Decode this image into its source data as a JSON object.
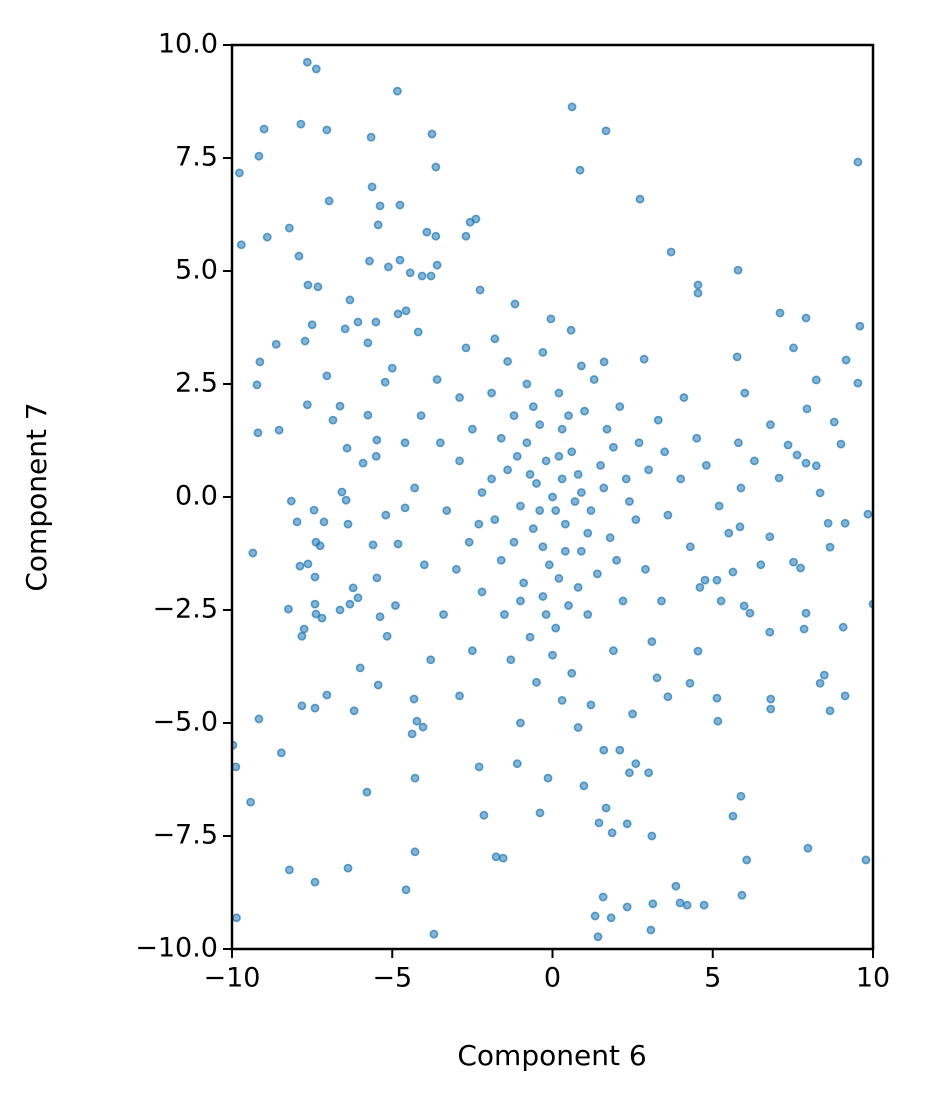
{
  "chart_data": {
    "type": "scatter",
    "xlabel": "Component 6",
    "ylabel": "Component 7",
    "color": "#1f77b4",
    "xlim": [
      -10,
      10
    ],
    "ylim": [
      -10,
      10
    ],
    "xticks": [
      {
        "value": -10,
        "label": "−10"
      },
      {
        "value": -5,
        "label": "−5"
      },
      0,
      5,
      10
    ],
    "yticks": [
      {
        "value": -10,
        "label": "−10.0"
      },
      {
        "value": -7.5,
        "label": "−7.5"
      },
      {
        "value": -5,
        "label": "−5.0"
      },
      {
        "value": -2.5,
        "label": "−2.5"
      },
      {
        "value": 0,
        "label": "0.0"
      },
      2.5,
      {
        "value": 5,
        "label": "5.0"
      },
      7.5,
      {
        "value": 10,
        "label": "10.0"
      }
    ],
    "x": [
      -7.65,
      -7.37,
      -4.84,
      0.61,
      -9.0,
      -7.85,
      -7.04,
      -3.76,
      -5.66,
      1.67,
      -9.77,
      -9.16,
      -3.64,
      0.86,
      9.53,
      2.73,
      -6.97,
      -5.63,
      -9.71,
      -8.9,
      -8.21,
      -5.38,
      -4.76,
      -2.57,
      -2.39,
      -5.44,
      -2.7,
      3.7,
      -7.91,
      -5.71,
      5.79,
      4.54,
      4.54,
      -7.63,
      -7.32,
      -6.32,
      -2.26,
      -1.17,
      7.1,
      7.91,
      9.59,
      -0.05,
      0.58,
      -7.5,
      -7.72,
      -9.13,
      -8.62,
      -7.04,
      -9.22,
      -7.65,
      -9.19,
      -8.53,
      1.61,
      2.86,
      5.76,
      7.52,
      9.16,
      8.23,
      9.53,
      7.94,
      8.79,
      9.0,
      7.35,
      7.63,
      7.07,
      7.91,
      8.23,
      9.84,
      8.35,
      8.6,
      9.13,
      8.66,
      6.78,
      5.88,
      5.85,
      7.52,
      7.74,
      5.63,
      5.13,
      4.76,
      10.0,
      7.91,
      9.07,
      7.85,
      6.16,
      6.78,
      5.26,
      5.98,
      4.54,
      4.29,
      3.6,
      3.26,
      8.48,
      8.35,
      9.13,
      5.13,
      6.81,
      6.81,
      5.16,
      8.66,
      5.88,
      5.63,
      6.06,
      7.97,
      9.78,
      5.91,
      4.73,
      4.2,
      3.98,
      3.85,
      3.13,
      3.07,
      2.33,
      1.83,
      1.42,
      1.58,
      1.33,
      3.1,
      2.33,
      1.86,
      1.45,
      1.67,
      0.98,
      -0.39,
      -0.14,
      -2.14,
      -2.29,
      -1.54,
      -1.76,
      -3.7,
      -4.29,
      -4.57,
      -4.29,
      -5.79,
      -6.38,
      -7.41,
      -8.21,
      -9.86,
      -9.42,
      -9.88,
      -9.97,
      -8.46,
      -9.16,
      -7.82,
      -7.41,
      -7.04,
      -6.19,
      -5.44,
      -4.32,
      -4.23,
      -4.04,
      -4.38,
      -6.0,
      -8.24,
      -7.41,
      -7.38,
      -7.75,
      -7.82,
      -7.19,
      -6.63,
      -6.22,
      -6.32,
      -6.07,
      -5.48,
      -5.38,
      -5.16,
      -9.35,
      -8.15,
      -7.97,
      -7.44,
      -7.13,
      -7.38,
      -7.25,
      -7.88,
      -7.63,
      -7.41,
      -6.38,
      -6.57,
      -6.44,
      -5.6,
      -4.82,
      -4.6,
      -5.91,
      -5.48,
      -6.41,
      -6.85,
      -6.63,
      -5.76,
      -5.22,
      -5.0,
      -5.76,
      -6.47,
      -6.07,
      -5.51,
      -4.82,
      -4.57,
      -4.19,
      -3.6,
      -4.44,
      -5.12,
      -4.76,
      -3.64,
      -3.92,
      -3.79,
      -4.07,
      0,
      -0.5,
      0.4,
      -1.0,
      0.8,
      -0.3,
      0.2,
      1.2,
      -1.4,
      -0.8,
      0.6,
      1.6,
      -1.8,
      -0.2,
      0.1,
      -0.6,
      0.9,
      1.8,
      2.3,
      -2.2,
      -1.2,
      -0.4,
      0.3,
      1.0,
      -1.6,
      -0.9,
      0.5,
      0.1,
      -0.3,
      1.4,
      2.0,
      2.6,
      3.0,
      2.7,
      1.9,
      -2.6,
      -2.9,
      -2.5,
      -1.9,
      -0.8,
      0.2,
      1.3,
      2.1,
      3.5,
      4.0,
      3.6,
      2.9,
      2.2,
      1.1,
      0.0,
      -0.7,
      -1.5,
      -2.2,
      -3.0,
      -3.3,
      -3.5,
      -2.9,
      -1.4,
      -0.3,
      0.9,
      4.5,
      4.8,
      5.2,
      4.3,
      3.4,
      3.1,
      1.9,
      0.6,
      -0.5,
      -1.3,
      -2.5,
      -3.4,
      -4.0,
      -4.3,
      -4.1,
      -3.6,
      -2.7,
      -1.8,
      0.4,
      -0.1,
      0.7,
      -0.7,
      -1.1,
      0.3,
      1.5,
      -1.2,
      0.9,
      -0.4,
      0.2,
      1.1,
      -1.9,
      -0.2,
      0.8,
      -1.6,
      2.4,
      -2.3,
      1.7,
      -0.6,
      0.5,
      -1.0,
      5.8,
      6.3,
      6.8,
      6.0,
      5.5,
      4.6,
      6.5,
      4.1,
      3.3,
      -5.2,
      -4.9,
      -4.6,
      -5.5,
      -3.8,
      -2.9,
      1.2,
      2.5,
      0.8,
      -1.0,
      2.1,
      2.6,
      3.0,
      2.4,
      -1.1,
      1.6,
      0.3
    ],
    "y": [
      9.62,
      9.47,
      8.98,
      8.63,
      8.14,
      8.25,
      8.12,
      8.03,
      7.96,
      8.1,
      7.17,
      7.54,
      7.3,
      7.23,
      7.41,
      6.59,
      6.55,
      6.86,
      5.58,
      5.75,
      5.95,
      6.44,
      6.46,
      6.08,
      6.15,
      6.02,
      5.77,
      5.42,
      5.33,
      5.22,
      5.02,
      4.69,
      4.51,
      4.69,
      4.65,
      4.36,
      4.58,
      4.27,
      4.07,
      3.96,
      3.78,
      3.94,
      3.69,
      3.81,
      3.45,
      2.99,
      3.38,
      2.68,
      2.48,
      2.04,
      1.42,
      1.48,
      2.99,
      3.05,
      3.1,
      3.3,
      3.03,
      2.59,
      2.52,
      1.95,
      1.66,
      1.17,
      1.15,
      0.93,
      0.42,
      0.75,
      0.69,
      -0.38,
      0.09,
      -0.58,
      -0.58,
      -1.11,
      -0.88,
      0.2,
      -0.66,
      -1.44,
      -1.57,
      -1.66,
      -1.84,
      -1.84,
      -2.37,
      -2.57,
      -2.88,
      -2.92,
      -2.57,
      -2.99,
      -2.3,
      -2.41,
      -3.41,
      -4.12,
      -4.42,
      -4.0,
      -3.94,
      -4.12,
      -4.4,
      -4.45,
      -4.47,
      -4.69,
      -4.96,
      -4.73,
      -6.62,
      -7.06,
      -8.03,
      -7.77,
      -8.03,
      -8.81,
      -9.03,
      -9.03,
      -8.98,
      -8.61,
      -9.0,
      -9.58,
      -9.07,
      -9.31,
      -9.73,
      -8.85,
      -9.27,
      -7.5,
      -7.23,
      -7.43,
      -7.21,
      -6.88,
      -6.39,
      -6.99,
      -6.22,
      -7.04,
      -5.97,
      -7.99,
      -7.96,
      -9.67,
      -7.85,
      -8.69,
      -6.22,
      -6.53,
      -8.21,
      -8.52,
      -8.25,
      -9.31,
      -6.75,
      -5.97,
      -5.49,
      -5.66,
      -4.91,
      -4.62,
      -4.67,
      -4.38,
      -4.73,
      -4.16,
      -4.47,
      -4.96,
      -5.09,
      -5.24,
      -3.78,
      -2.48,
      -2.37,
      -2.59,
      -2.92,
      -3.08,
      -2.68,
      -2.5,
      -2.01,
      -2.37,
      -2.23,
      -1.79,
      -2.65,
      -3.08,
      -1.24,
      -0.09,
      -0.55,
      -0.29,
      -0.55,
      -1.0,
      -1.08,
      -1.53,
      -1.48,
      -1.77,
      -0.6,
      0.11,
      -0.07,
      -1.06,
      -1.04,
      -0.24,
      0.75,
      1.26,
      1.08,
      1.7,
      2.01,
      1.81,
      2.54,
      2.85,
      3.41,
      3.72,
      3.87,
      3.87,
      4.05,
      4.12,
      3.65,
      5.13,
      4.96,
      5.09,
      5.24,
      5.77,
      5.86,
      4.89,
      4.89,
      0,
      0.3,
      -0.6,
      -0.2,
      0.5,
      -1.1,
      -1.8,
      -0.3,
      0.6,
      1.2,
      1.0,
      0.2,
      -0.5,
      0.8,
      -0.3,
      -0.7,
      -1.2,
      -0.9,
      0.4,
      0.1,
      1.8,
      1.6,
      1.5,
      1.9,
      -1.4,
      -1.9,
      -2.4,
      -2.9,
      -2.2,
      -1.7,
      -1.4,
      -0.5,
      0.6,
      1.2,
      1.1,
      -1.0,
      0.8,
      1.5,
      2.3,
      2.5,
      2.3,
      2.6,
      2.0,
      1.0,
      0.4,
      -0.4,
      -1.6,
      -2.3,
      -2.6,
      -3.5,
      -3.1,
      -2.6,
      -2.1,
      -1.6,
      -0.3,
      1.2,
      2.2,
      3.0,
      3.2,
      2.9,
      1.3,
      0.7,
      -0.2,
      -1.1,
      -2.3,
      -3.2,
      -3.4,
      -3.9,
      -4.1,
      -3.6,
      -3.4,
      -2.6,
      -1.5,
      0.2,
      1.8,
      2.6,
      3.3,
      3.5,
      -1.2,
      -1.5,
      -0.1,
      0.5,
      0.9,
      0.4,
      0.7,
      -1.0,
      0.1,
      -0.3,
      0.9,
      -0.8,
      0.4,
      -2.6,
      -2.0,
      1.3,
      -0.1,
      -0.6,
      1.5,
      2.0,
      1.8,
      -2.3,
      1.2,
      0.8,
      1.6,
      2.3,
      -0.8,
      -2.0,
      -1.5,
      2.2,
      1.7,
      -0.4,
      -2.4,
      1.2,
      0.9,
      -3.6,
      -4.4,
      -4.6,
      -4.8,
      -5.1,
      -5.0,
      -5.6,
      -5.9,
      -6.1,
      -6.1,
      -5.9,
      -5.6,
      -4.5
    ]
  }
}
